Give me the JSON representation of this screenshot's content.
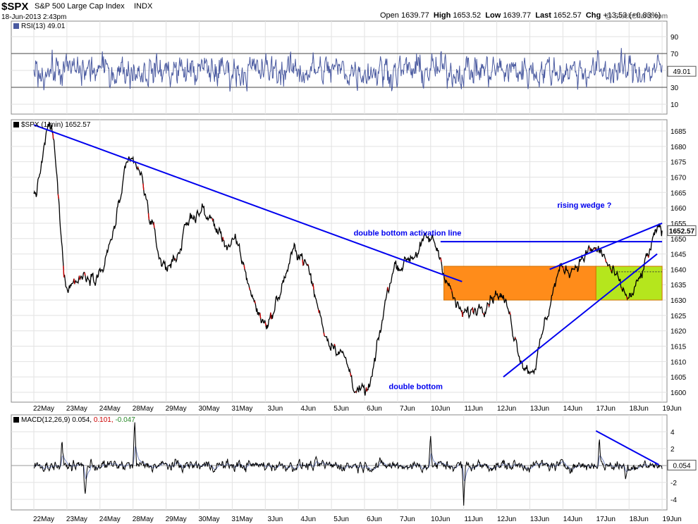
{
  "header": {
    "symbol": "$SPX",
    "name": "S&P 500 Large Cap Index",
    "exchange": "INDX",
    "date": "18-Jun-2013 2:43pm",
    "open_label": "Open",
    "open": "1639.77",
    "high_label": "High",
    "high": "1653.52",
    "low_label": "Low",
    "low": "1639.77",
    "last_label": "Last",
    "last": "1652.57",
    "chg_label": "Chg",
    "chg": "+13.53 (+0.83%)",
    "watermark": "@ StockCharts.com"
  },
  "colors": {
    "accent_blue": "#0000ee",
    "rsi_line": "#4a5aa0",
    "price_line": "#000000",
    "orange_zone": "#ff8c1a",
    "green_zone": "#b5e61d",
    "down_tick": "#cc0000",
    "signal_line": "#0000cc"
  },
  "chart_data": [
    {
      "type": "line",
      "panel": "rsi",
      "label": "RSI(13) 49.01",
      "current_value": "49.01",
      "yticks": [
        10,
        30,
        50,
        70,
        90
      ],
      "ylim": [
        0,
        100
      ],
      "guide_levels": [
        30,
        70
      ],
      "grid": true
    },
    {
      "type": "line",
      "panel": "price",
      "label": "$SPX (1 min) 1652.57",
      "current_value": "1652.57",
      "x_categories": [
        "22May",
        "23May",
        "24May",
        "28May",
        "29May",
        "30May",
        "31May",
        "3Jun",
        "4Jun",
        "5Jun",
        "6Jun",
        "7Jun",
        "10Jun",
        "11Jun",
        "12Jun",
        "13Jun",
        "14Jun",
        "17Jun",
        "18Jun",
        "19Jun"
      ],
      "yticks": [
        1600,
        1605,
        1610,
        1615,
        1620,
        1625,
        1630,
        1635,
        1640,
        1645,
        1650,
        1655,
        1660,
        1665,
        1670,
        1675,
        1680,
        1685
      ],
      "ylim": [
        1598,
        1688
      ],
      "key_points": [
        {
          "day": 0,
          "value": 1664
        },
        {
          "day": 0.5,
          "value": 1686
        },
        {
          "day": 1,
          "value": 1636
        },
        {
          "day": 2,
          "value": 1640
        },
        {
          "day": 3,
          "value": 1674
        },
        {
          "day": 4,
          "value": 1641
        },
        {
          "day": 5,
          "value": 1659
        },
        {
          "day": 6,
          "value": 1648
        },
        {
          "day": 7,
          "value": 1623
        },
        {
          "day": 8,
          "value": 1646
        },
        {
          "day": 9,
          "value": 1617
        },
        {
          "day": 10,
          "value": 1599
        },
        {
          "day": 11,
          "value": 1642
        },
        {
          "day": 12,
          "value": 1649
        },
        {
          "day": 13,
          "value": 1625
        },
        {
          "day": 14,
          "value": 1633
        },
        {
          "day": 15,
          "value": 1608
        },
        {
          "day": 16,
          "value": 1640
        },
        {
          "day": 17,
          "value": 1646
        },
        {
          "day": 18,
          "value": 1631
        },
        {
          "day": 19,
          "value": 1652.57
        }
      ],
      "zones": [
        {
          "name": "orange",
          "from_day": 12.4,
          "to_day": 17.0,
          "low": 1630,
          "high": 1641
        },
        {
          "name": "green",
          "from_day": 17.0,
          "to_day": 19.0,
          "low": 1630,
          "high": 1641
        }
      ],
      "trendlines": [
        {
          "from": [
            0,
            1687
          ],
          "to": [
            12.95,
            1636
          ]
        },
        {
          "from": [
            12.3,
            1649
          ],
          "to": [
            19,
            1649
          ]
        },
        {
          "from": [
            14.2,
            1605
          ],
          "to": [
            18.85,
            1645
          ]
        },
        {
          "from": [
            15.6,
            1640
          ],
          "to": [
            19,
            1655
          ]
        }
      ],
      "annotations": [
        {
          "text": "double bottom activation line",
          "day": 11.3,
          "value": 1651
        },
        {
          "text": "rising wedge ?",
          "day": 16.65,
          "value": 1660
        },
        {
          "text": "double bottom",
          "day": 11.55,
          "value": 1601
        }
      ],
      "grid": true
    },
    {
      "type": "line",
      "panel": "macd",
      "label_prefix": "MACD(12,26,9)",
      "macd_value": "0.054",
      "signal_value": "0.101",
      "histogram_value": "-0.047",
      "current_value": "0.054",
      "yticks": [
        -4,
        -2,
        2,
        4
      ],
      "ylim": [
        -5,
        5.5
      ],
      "spikes": [
        {
          "day": 0.85,
          "value": 2.5
        },
        {
          "day": 1.55,
          "value": -4
        },
        {
          "day": 3.05,
          "value": 5
        },
        {
          "day": 12.0,
          "value": 3.2
        },
        {
          "day": 13.0,
          "value": -5
        },
        {
          "day": 17.1,
          "value": 3.5
        },
        {
          "day": 17.9,
          "value": -2
        }
      ],
      "trendlines": [
        {
          "from": [
            17.0,
            4.1
          ],
          "to": [
            18.9,
            0.1
          ]
        }
      ],
      "grid": true
    }
  ]
}
